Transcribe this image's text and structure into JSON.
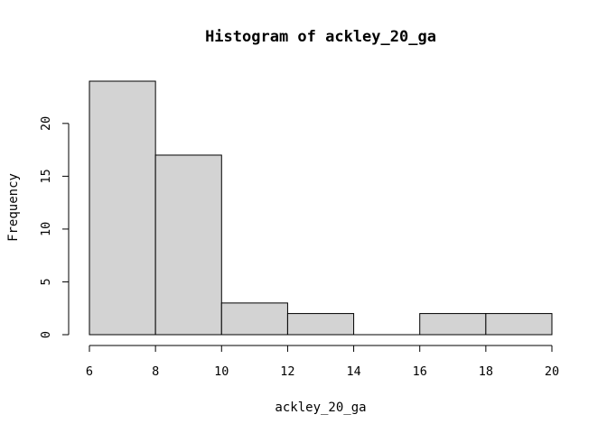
{
  "chart_data": {
    "type": "bar",
    "title": "Histogram of ackley_20_ga",
    "xlabel": "ackley_20_ga",
    "ylabel": "Frequency",
    "bins": [
      {
        "from": 6,
        "to": 8,
        "count": 24
      },
      {
        "from": 8,
        "to": 10,
        "count": 17
      },
      {
        "from": 10,
        "to": 12,
        "count": 3
      },
      {
        "from": 12,
        "to": 14,
        "count": 2
      },
      {
        "from": 14,
        "to": 16,
        "count": 0
      },
      {
        "from": 16,
        "to": 18,
        "count": 2
      },
      {
        "from": 18,
        "to": 20,
        "count": 2
      }
    ],
    "xlim": [
      6,
      20
    ],
    "ylim": [
      0,
      24
    ],
    "x_ticks": [
      "6",
      "8",
      "10",
      "12",
      "14",
      "16",
      "18",
      "20"
    ],
    "y_ticks": [
      "0",
      "5",
      "10",
      "15",
      "20"
    ],
    "bar_fill": "#d3d3d3",
    "bar_stroke": "#000000",
    "grid": false,
    "legend": "none"
  }
}
